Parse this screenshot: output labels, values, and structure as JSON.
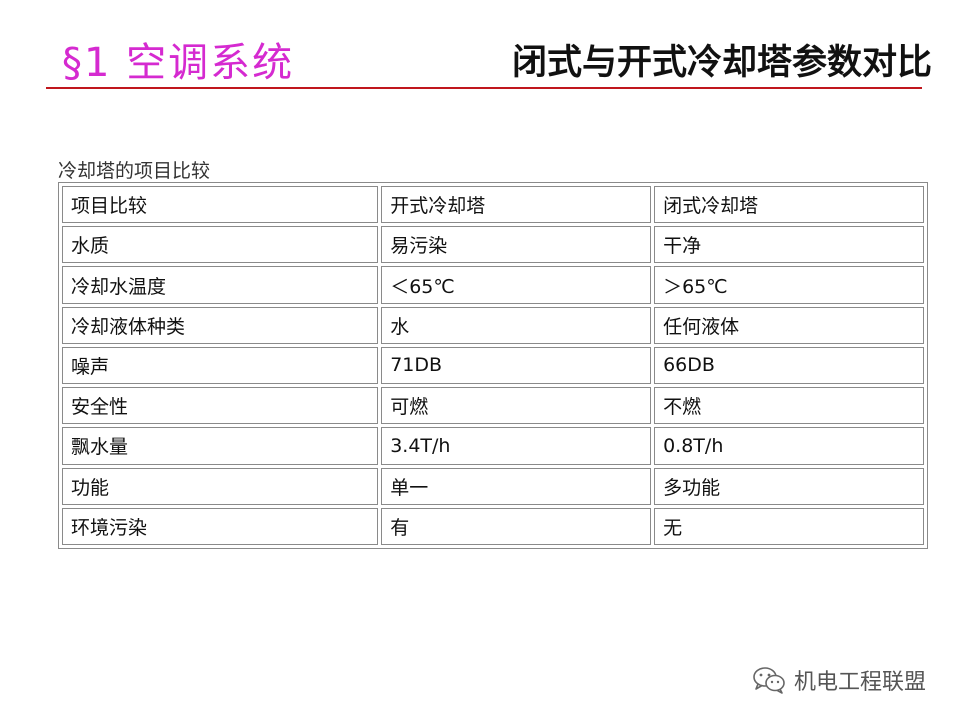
{
  "header": {
    "section": "§1 空调系统",
    "title": "闭式与开式冷却塔参数对比"
  },
  "table": {
    "caption": "冷却塔的项目比较",
    "rows": [
      [
        "项目比较",
        "开式冷却塔",
        "闭式冷却塔"
      ],
      [
        "水质",
        "易污染",
        "干净"
      ],
      [
        "冷却水温度",
        "＜65℃",
        "＞65℃"
      ],
      [
        "冷却液体种类",
        "水",
        "任何液体"
      ],
      [
        "噪声",
        "71DB",
        "66DB"
      ],
      [
        "安全性",
        "可燃",
        "不燃"
      ],
      [
        "飘水量",
        "3.4T/h",
        "0.8T/h"
      ],
      [
        "功能",
        "单一",
        "多功能"
      ],
      [
        "环境污染",
        "有",
        "无"
      ]
    ]
  },
  "watermark": {
    "text": "机电工程联盟",
    "icon": "wechat-icon"
  },
  "colors": {
    "section": "#d52ad0",
    "rule": "#c0171d",
    "border": "#8a8a8a"
  }
}
